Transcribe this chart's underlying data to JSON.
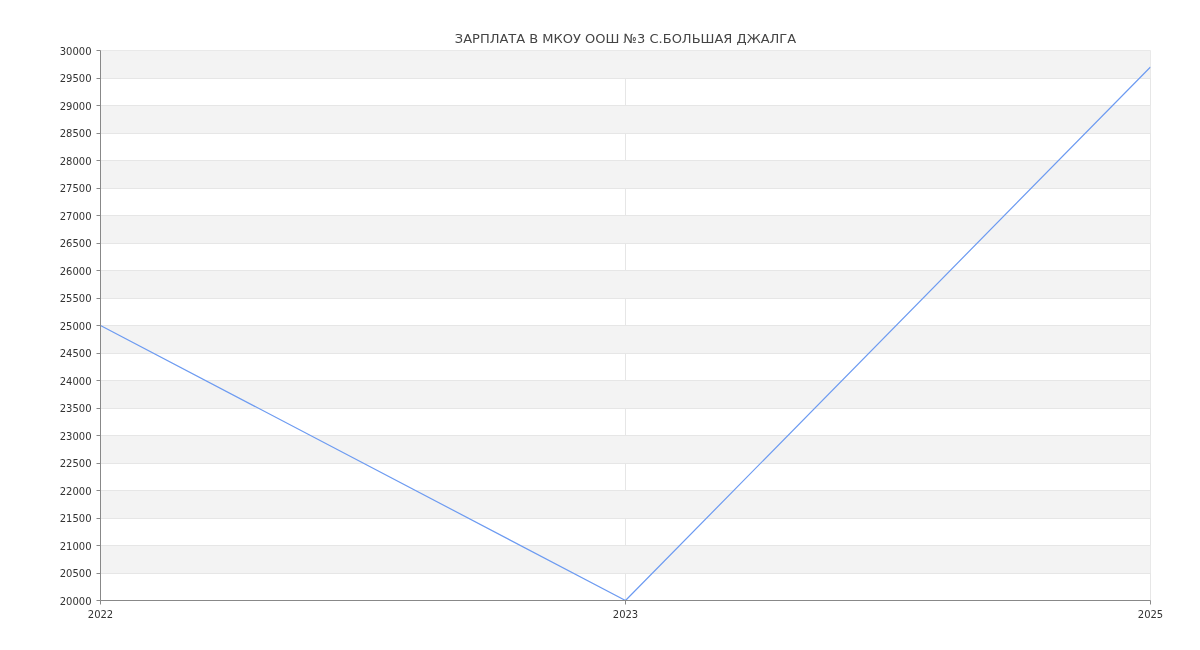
{
  "chart_data": {
    "type": "line",
    "title": "ЗАРПЛАТА В МКОУ ООШ №3 С.БОЛЬШАЯ ДЖАЛГА",
    "categories": [
      "2022",
      "2023",
      "2025"
    ],
    "series": [
      {
        "color": "#6d9bf1",
        "values": [
          25000,
          20000,
          29700
        ]
      }
    ],
    "ylim": [
      20000,
      30000
    ],
    "yticks": [
      20000,
      20500,
      21000,
      21500,
      22000,
      22500,
      23000,
      23500,
      24000,
      24500,
      25000,
      25500,
      26000,
      26500,
      27000,
      27500,
      28000,
      28500,
      29000,
      29500,
      30000
    ],
    "grid": true,
    "marker": "none",
    "line_style": "solid"
  }
}
